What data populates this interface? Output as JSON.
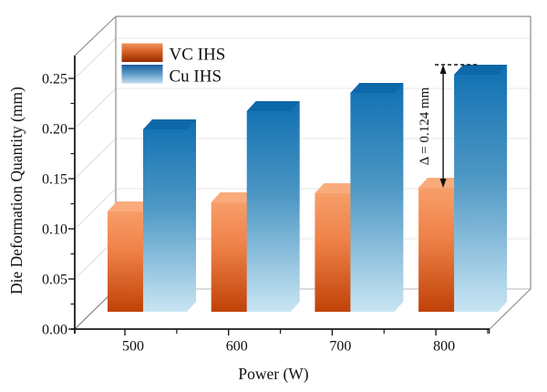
{
  "figure": {
    "background": "#ffffff",
    "text_color": "#111111",
    "axis_color": "#1a1a1a",
    "box_edge_color": "#8c8c8c",
    "grid_color": "#ececec",
    "wall_diag_color": "#e0e0e0",
    "floor_edge_color": "#c8c8c8"
  },
  "chart_data": {
    "type": "bar",
    "projection": "3d",
    "title": "",
    "xlabel": "Power (W)",
    "ylabel": "Die Deformation Quantity (mm)",
    "categories": [
      "500",
      "600",
      "700",
      "800"
    ],
    "series": [
      {
        "name": "VC IHS",
        "values": [
          0.11,
          0.12,
          0.13,
          0.136
        ],
        "gradient": [
          "#F9A470",
          "#EE8148",
          "#C04208"
        ],
        "top_face": "#FAAB7C",
        "legend_gradient": [
          "#F4935B",
          "#CF5A20",
          "#972E00"
        ]
      },
      {
        "name": "Cu IHS",
        "values": [
          0.2,
          0.22,
          0.24,
          0.26
        ],
        "gradient": [
          "#0F6FB2",
          "#4D97C4",
          "#C9E5F3"
        ],
        "top_face": "#0D68A8",
        "legend_gradient": [
          "#1A5C9E",
          "#5F9CC8",
          "#C5DCF0"
        ]
      }
    ],
    "ylim": [
      0,
      0.275
    ],
    "ytick_labels": [
      "0.00",
      "0.05",
      "0.10",
      "0.15",
      "0.20",
      "0.25"
    ],
    "ytick_values": [
      0,
      0.05,
      0.1,
      0.15,
      0.2,
      0.25
    ],
    "yminor_values": [
      0.025,
      0.075,
      0.125,
      0.175,
      0.225
    ],
    "grid": true,
    "legend": {
      "position": "top-left-inside",
      "items": [
        "VC IHS",
        "Cu IHS"
      ]
    },
    "annotation": {
      "text": "Δ = 0.124 mm",
      "category": "800",
      "from_series": "VC IHS",
      "from_value": 0.136,
      "to_series": "Cu IHS",
      "to_value": 0.26
    }
  }
}
